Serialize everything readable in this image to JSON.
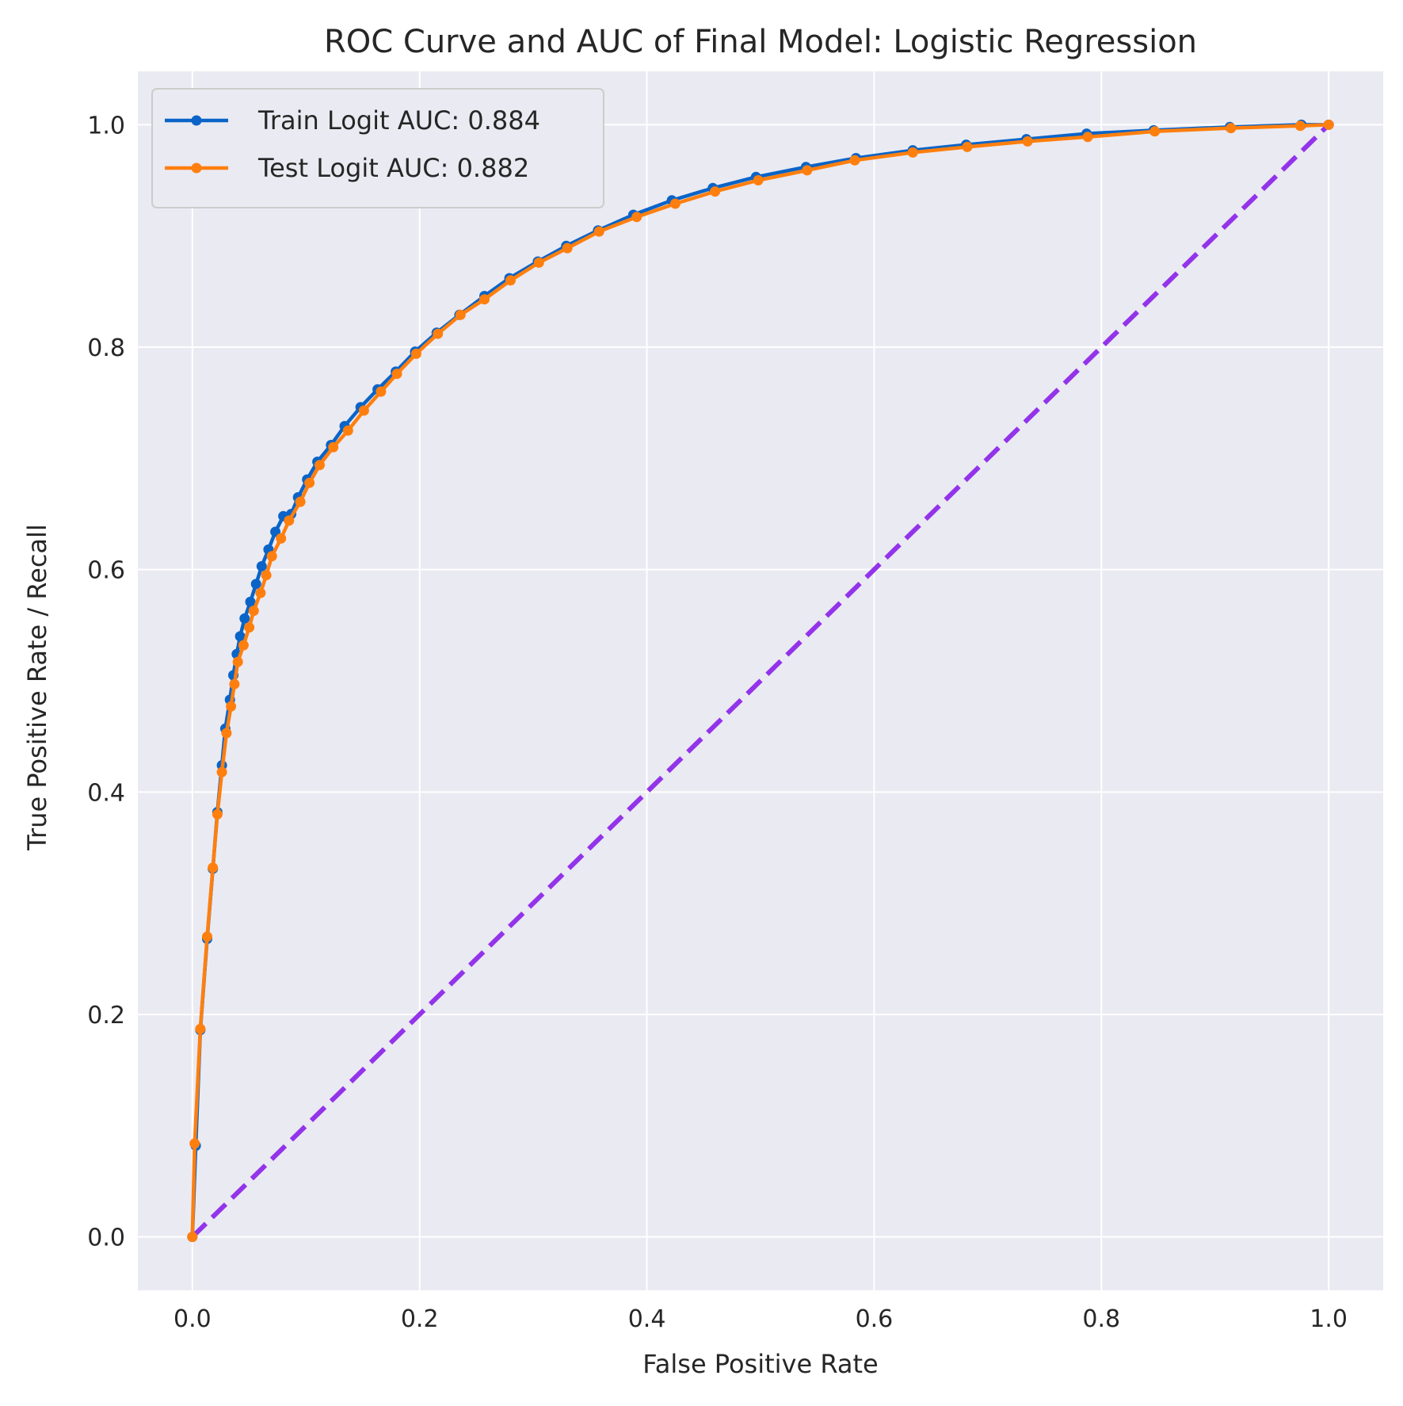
{
  "chart_data": {
    "type": "line",
    "title": "ROC Curve and AUC of Final Model: Logistic Regression",
    "xlabel": "False Positive Rate",
    "ylabel": "True Positive Rate / Recall",
    "xlim": [
      -0.048,
      1.048
    ],
    "ylim": [
      -0.048,
      1.048
    ],
    "xticks": [
      0.0,
      0.2,
      0.4,
      0.6,
      0.8,
      1.0
    ],
    "yticks": [
      0.0,
      0.2,
      0.4,
      0.6,
      0.8,
      1.0
    ],
    "xtick_labels": [
      "0.0",
      "0.2",
      "0.4",
      "0.6",
      "0.8",
      "1.0"
    ],
    "ytick_labels": [
      "0.0",
      "0.2",
      "0.4",
      "0.6",
      "0.8",
      "1.0"
    ],
    "grid": true,
    "legend_position": "top-left",
    "background_color": "#eaeaf2",
    "series": [
      {
        "name": "Train Logit AUC: 0.884",
        "color": "#0a64c8",
        "marker": "circle",
        "points": [
          [
            0.0,
            0.0
          ],
          [
            0.003,
            0.082
          ],
          [
            0.007,
            0.186
          ],
          [
            0.013,
            0.268
          ],
          [
            0.018,
            0.331
          ],
          [
            0.022,
            0.382
          ],
          [
            0.026,
            0.424
          ],
          [
            0.029,
            0.457
          ],
          [
            0.033,
            0.483
          ],
          [
            0.036,
            0.505
          ],
          [
            0.039,
            0.524
          ],
          [
            0.042,
            0.54
          ],
          [
            0.046,
            0.556
          ],
          [
            0.051,
            0.571
          ],
          [
            0.056,
            0.587
          ],
          [
            0.061,
            0.603
          ],
          [
            0.067,
            0.618
          ],
          [
            0.073,
            0.634
          ],
          [
            0.08,
            0.648
          ],
          [
            0.087,
            0.65
          ],
          [
            0.093,
            0.665
          ],
          [
            0.101,
            0.681
          ],
          [
            0.11,
            0.697
          ],
          [
            0.122,
            0.712
          ],
          [
            0.134,
            0.729
          ],
          [
            0.148,
            0.746
          ],
          [
            0.163,
            0.762
          ],
          [
            0.179,
            0.778
          ],
          [
            0.196,
            0.796
          ],
          [
            0.215,
            0.813
          ],
          [
            0.235,
            0.829
          ],
          [
            0.257,
            0.846
          ],
          [
            0.279,
            0.862
          ],
          [
            0.304,
            0.877
          ],
          [
            0.329,
            0.891
          ],
          [
            0.357,
            0.905
          ],
          [
            0.388,
            0.919
          ],
          [
            0.422,
            0.932
          ],
          [
            0.458,
            0.943
          ],
          [
            0.496,
            0.953
          ],
          [
            0.54,
            0.962
          ],
          [
            0.584,
            0.97
          ],
          [
            0.634,
            0.977
          ],
          [
            0.681,
            0.982
          ],
          [
            0.734,
            0.987
          ],
          [
            0.787,
            0.992
          ],
          [
            0.846,
            0.995
          ],
          [
            0.913,
            0.998
          ],
          [
            0.976,
            1.0
          ],
          [
            1.0,
            1.0
          ]
        ]
      },
      {
        "name": "Test Logit AUC: 0.882",
        "color": "#ff7f0e",
        "marker": "circle",
        "points": [
          [
            0.0,
            0.0
          ],
          [
            0.002,
            0.084
          ],
          [
            0.007,
            0.187
          ],
          [
            0.013,
            0.27
          ],
          [
            0.018,
            0.332
          ],
          [
            0.022,
            0.38
          ],
          [
            0.026,
            0.418
          ],
          [
            0.03,
            0.453
          ],
          [
            0.034,
            0.477
          ],
          [
            0.037,
            0.497
          ],
          [
            0.04,
            0.517
          ],
          [
            0.045,
            0.532
          ],
          [
            0.05,
            0.548
          ],
          [
            0.054,
            0.563
          ],
          [
            0.06,
            0.579
          ],
          [
            0.065,
            0.595
          ],
          [
            0.07,
            0.612
          ],
          [
            0.078,
            0.628
          ],
          [
            0.085,
            0.644
          ],
          [
            0.095,
            0.661
          ],
          [
            0.103,
            0.678
          ],
          [
            0.112,
            0.694
          ],
          [
            0.124,
            0.71
          ],
          [
            0.137,
            0.725
          ],
          [
            0.151,
            0.743
          ],
          [
            0.166,
            0.76
          ],
          [
            0.18,
            0.776
          ],
          [
            0.197,
            0.794
          ],
          [
            0.216,
            0.812
          ],
          [
            0.236,
            0.829
          ],
          [
            0.257,
            0.843
          ],
          [
            0.28,
            0.86
          ],
          [
            0.305,
            0.876
          ],
          [
            0.33,
            0.889
          ],
          [
            0.358,
            0.904
          ],
          [
            0.391,
            0.917
          ],
          [
            0.425,
            0.929
          ],
          [
            0.46,
            0.94
          ],
          [
            0.498,
            0.95
          ],
          [
            0.541,
            0.959
          ],
          [
            0.583,
            0.968
          ],
          [
            0.634,
            0.975
          ],
          [
            0.682,
            0.98
          ],
          [
            0.735,
            0.985
          ],
          [
            0.788,
            0.989
          ],
          [
            0.847,
            0.994
          ],
          [
            0.914,
            0.997
          ],
          [
            0.975,
            0.999
          ],
          [
            1.0,
            1.0
          ]
        ]
      },
      {
        "name": "",
        "color": "#9333ea",
        "style": "dashed",
        "points": [
          [
            0.0,
            0.0
          ],
          [
            1.0,
            1.0
          ]
        ]
      }
    ]
  }
}
